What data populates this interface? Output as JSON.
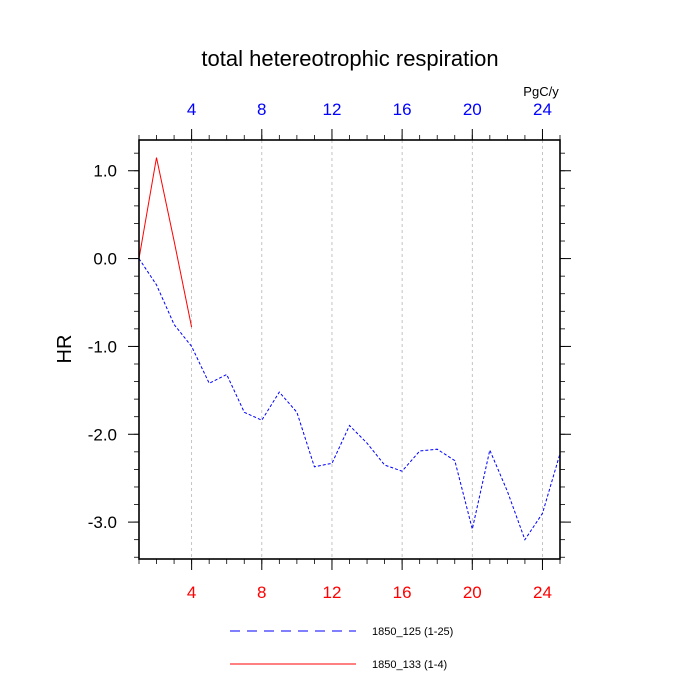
{
  "chart_data": {
    "type": "line",
    "title": "total hetereotrophic respiration",
    "ylabel": "HR",
    "top_axis_unit": "PgC/y",
    "xlim": [
      1,
      25
    ],
    "ylim": [
      -3.42,
      1.35
    ],
    "x_ticks": [
      4,
      8,
      12,
      16,
      20,
      24
    ],
    "y_ticks": [
      1.0,
      0.0,
      -1.0,
      -2.0,
      -3.0
    ],
    "y_tick_labels": [
      "1.0",
      "0.0",
      "-1.0",
      "-2.0",
      "-3.0"
    ],
    "x_grid": true,
    "bottom_tick_color": "#ff0000",
    "top_tick_color": "#0000ff",
    "series": [
      {
        "name": "1850_125 (1-25)",
        "color": "#0000ff",
        "dash": "dashed",
        "x": [
          1,
          2,
          3,
          4,
          5,
          6,
          7,
          8,
          9,
          10,
          11,
          12,
          13,
          14,
          15,
          16,
          17,
          18,
          19,
          20,
          21,
          22,
          23,
          24,
          25
        ],
        "values": [
          0.0,
          -0.3,
          -0.75,
          -1.0,
          -1.42,
          -1.32,
          -1.75,
          -1.84,
          -1.52,
          -1.75,
          -2.37,
          -2.33,
          -1.9,
          -2.1,
          -2.35,
          -2.42,
          -2.19,
          -2.17,
          -2.3,
          -3.08,
          -2.18,
          -2.65,
          -3.2,
          -2.9,
          -2.22
        ]
      },
      {
        "name": "1850_133 (1-4)",
        "color": "#ff0000",
        "dash": "solid",
        "x": [
          1,
          2,
          3,
          4
        ],
        "values": [
          0.0,
          1.15,
          0.2,
          -0.78
        ]
      }
    ],
    "legend": [
      "1850_125 (1-25)",
      "1850_133 (1-4)"
    ]
  }
}
